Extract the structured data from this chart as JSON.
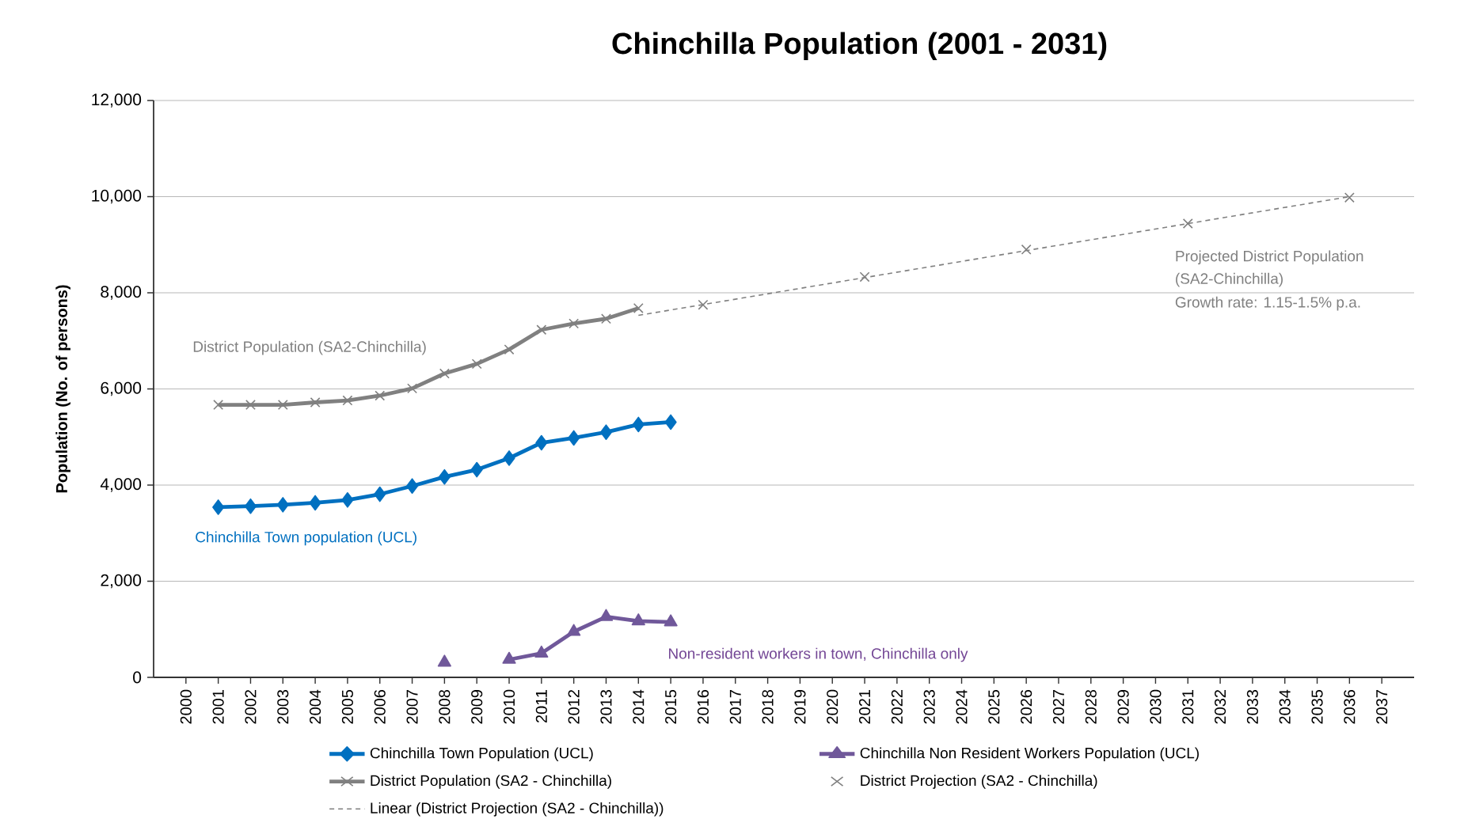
{
  "chart_data": {
    "type": "line",
    "title": "Chinchilla Population (2001 - 2031)",
    "ylabel": "Population (No. of persons)",
    "xlim": [
      1999,
      2038
    ],
    "xticks": [
      2000,
      2001,
      2002,
      2003,
      2004,
      2005,
      2006,
      2007,
      2008,
      2009,
      2010,
      2011,
      2012,
      2013,
      2014,
      2015,
      2016,
      2017,
      2018,
      2019,
      2020,
      2021,
      2022,
      2023,
      2024,
      2025,
      2026,
      2027,
      2028,
      2029,
      2030,
      2031,
      2032,
      2033,
      2034,
      2035,
      2036,
      2037
    ],
    "ylim": [
      0,
      12000
    ],
    "yticks": [
      0,
      {
        "value": 2000,
        "label": "2,000"
      },
      {
        "value": 4000,
        "label": "4,000"
      },
      {
        "value": 6000,
        "label": "6,000"
      },
      {
        "value": 8000,
        "label": "8,000"
      },
      {
        "value": 10000,
        "label": "10,000"
      },
      {
        "value": 12000,
        "label": "12,000"
      }
    ],
    "grid": "y",
    "legend": "bottom",
    "series": [
      {
        "name": "Chinchilla Town Population (UCL)",
        "color": "#0070c0",
        "marker": "diamond",
        "x": [
          2001,
          2002,
          2003,
          2004,
          2005,
          2006,
          2007,
          2008,
          2009,
          2010,
          2011,
          2012,
          2013,
          2014,
          2015
        ],
        "values": [
          3540,
          3560,
          3590,
          3630,
          3690,
          3810,
          3980,
          4170,
          4320,
          4560,
          4880,
          4980,
          5100,
          5260,
          5310
        ]
      },
      {
        "name": "Chinchilla Non Resident Workers Population (UCL)",
        "color": "#70589a",
        "marker": "triangle",
        "x": [
          2008,
          2009,
          2010,
          2011,
          2012,
          2013,
          2014,
          2015
        ],
        "values": [
          310,
          null,
          370,
          500,
          950,
          1260,
          1170,
          1150
        ]
      },
      {
        "name": "District Population (SA2 - Chinchilla)",
        "color": "#808080",
        "marker": "cross",
        "x": [
          2001,
          2002,
          2003,
          2004,
          2005,
          2006,
          2007,
          2008,
          2009,
          2010,
          2011,
          2012,
          2013,
          2014
        ],
        "values": [
          5670,
          5670,
          5670,
          5720,
          5760,
          5860,
          6010,
          6320,
          6520,
          6820,
          7230,
          7360,
          7460,
          7680
        ]
      },
      {
        "name": "District Projection (SA2 - Chinchilla)",
        "type": "scatter",
        "color": "#808080",
        "marker": "cross",
        "x": [
          2016,
          2021,
          2026,
          2031,
          2036
        ],
        "values": [
          7750,
          8330,
          8900,
          9440,
          9980
        ]
      },
      {
        "name": "Linear (District Projection (SA2 - Chinchilla))",
        "color": "#808080",
        "marker": "none",
        "line_style": "dashed",
        "x": [
          2014,
          2036
        ],
        "values": [
          7530,
          10000
        ]
      }
    ],
    "annotations": [
      "District Population (SA2-Chinchilla)",
      "Chinchilla Town population (UCL)",
      "Non-resident workers in town, Chinchilla only",
      "Projected District Population",
      "(SA2-Chinchilla)",
      "Growth rate: 1.15-1.5% p.a."
    ]
  }
}
